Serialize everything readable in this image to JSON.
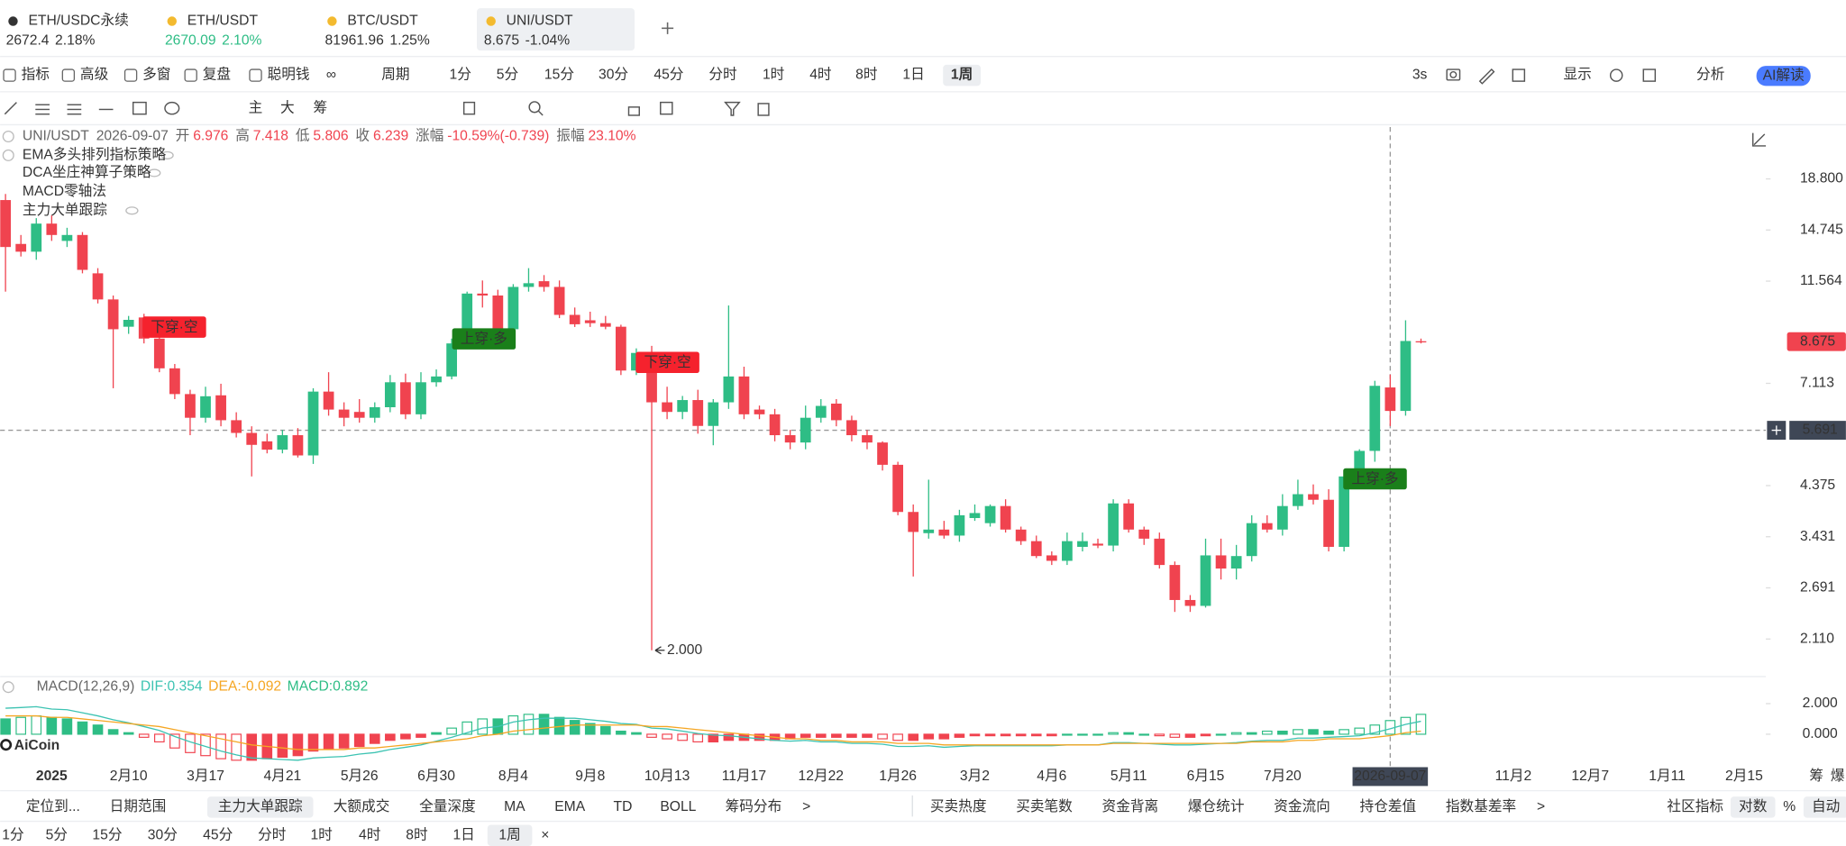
{
  "tabs": [
    {
      "symbol": "ETH/USDC永续",
      "price": "2672.4",
      "change": "2.18%",
      "color": "#333333"
    },
    {
      "symbol": "ETH/USDT",
      "price": "2670.09",
      "change": "2.10%",
      "color": "#2ebd85"
    },
    {
      "symbol": "BTC/USDT",
      "price": "81961.96",
      "change": "1.25%",
      "color": "#333333"
    },
    {
      "symbol": "UNI/USDT",
      "price": "8.675",
      "change": "-1.04%",
      "color": "#333333"
    }
  ],
  "toolbar": {
    "items": [
      "指标",
      "高级",
      "多窗",
      "复盘",
      "聪明钱"
    ],
    "period": "周期",
    "intervals": [
      "1分",
      "5分",
      "15分",
      "30分",
      "45分",
      "分时",
      "1时",
      "4时",
      "8时",
      "1日",
      "1周"
    ],
    "active": "1周",
    "right": [
      "3s",
      "显示",
      "分析"
    ],
    "ai": "AI解读"
  },
  "draw_tools": [
    "主",
    "大",
    "筹"
  ],
  "chart_data": {
    "type": "candlestick",
    "symbol": "UNI/USDT",
    "date": "2026-09-07",
    "ohlc_labels": [
      "开",
      "高",
      "低",
      "收"
    ],
    "change_label": "涨幅",
    "change": "-10.59%(-0.739)",
    "amplitude_label": "振幅",
    "amplitude": "23.10%",
    "indicators": [
      "EMA多头排列指标策略",
      "DCA坐庄神算子策略",
      "MACD零轴法",
      "主力大单跟踪"
    ],
    "up_color": "#2ebd85",
    "down_color": "#f0434f",
    "log_scale": true,
    "ylim": [
      1.795,
      24.05
    ],
    "yticks": [
      {
        "value": 18.8,
        "label": "18.800"
      },
      {
        "value": 14.745,
        "label": "14.745"
      },
      {
        "value": 11.564,
        "label": "11.564"
      },
      {
        "value": 7.113,
        "label": "7.113"
      },
      {
        "value": 4.375,
        "label": "4.375"
      },
      {
        "value": 3.431,
        "label": "3.431"
      },
      {
        "value": 2.691,
        "label": "2.691"
      },
      {
        "value": 2.11,
        "label": "2.110"
      }
    ],
    "crosshair_price": 5.691,
    "low_annotation": "2.000",
    "signals": [
      {
        "text": "下穿·空",
        "color": "#f5222d"
      },
      {
        "text": "上穿·多",
        "color": "#1a7f1a"
      },
      {
        "text": "下穿·空",
        "color": "#f5222d"
      },
      {
        "text": "上穿·多",
        "color": "#1a7f1a"
      }
    ],
    "x_labels": [
      "2025",
      "2月10",
      "3月17",
      "4月21",
      "5月26",
      "6月30",
      "8月4",
      "9月8",
      "10月13",
      "11月17",
      "12月22",
      "1月26",
      "3月2",
      "4月6",
      "5月11",
      "6月15",
      "7月20",
      null,
      null,
      "11月2",
      "12月7",
      "1月11",
      "2月15"
    ],
    "candles": [
      [
        17.0,
        17.5,
        11.0,
        13.6
      ],
      [
        13.8,
        14.4,
        13.0,
        13.3
      ],
      [
        13.3,
        15.6,
        12.8,
        15.2
      ],
      [
        15.2,
        15.8,
        14.0,
        14.4
      ],
      [
        14.0,
        14.9,
        13.6,
        14.4
      ],
      [
        14.4,
        14.6,
        12.0,
        12.2
      ],
      [
        12.0,
        12.3,
        10.4,
        10.6
      ],
      [
        10.6,
        10.8,
        6.95,
        9.2
      ],
      [
        9.31,
        9.8,
        9.0,
        9.62
      ],
      [
        9.73,
        9.9,
        8.6,
        8.8
      ],
      [
        8.8,
        9.0,
        7.5,
        7.64
      ],
      [
        7.64,
        7.8,
        6.6,
        6.76
      ],
      [
        6.76,
        6.9,
        5.56,
        6.04
      ],
      [
        6.04,
        7.0,
        5.9,
        6.69
      ],
      [
        6.72,
        7.1,
        5.8,
        5.97
      ],
      [
        5.97,
        6.2,
        5.5,
        5.62
      ],
      [
        5.62,
        5.8,
        4.57,
        5.31
      ],
      [
        5.4,
        5.6,
        5.1,
        5.19
      ],
      [
        5.19,
        5.7,
        5.1,
        5.56
      ],
      [
        5.56,
        5.75,
        5.0,
        5.05
      ],
      [
        5.05,
        6.95,
        4.85,
        6.84
      ],
      [
        6.84,
        7.5,
        6.1,
        6.28
      ],
      [
        6.28,
        6.5,
        5.8,
        6.04
      ],
      [
        6.21,
        6.6,
        5.9,
        6.04
      ],
      [
        6.04,
        6.5,
        5.9,
        6.35
      ],
      [
        6.35,
        7.4,
        6.2,
        7.15
      ],
      [
        7.15,
        7.45,
        6.0,
        6.14
      ],
      [
        6.14,
        7.5,
        6.0,
        7.15
      ],
      [
        7.15,
        7.6,
        7.0,
        7.35
      ],
      [
        7.35,
        8.8,
        7.25,
        8.6
      ],
      [
        8.6,
        11.0,
        8.4,
        10.9
      ],
      [
        10.9,
        11.6,
        10.2,
        10.8
      ],
      [
        10.8,
        11.1,
        9.0,
        9.2
      ],
      [
        9.2,
        11.4,
        9.0,
        11.25
      ],
      [
        11.25,
        12.3,
        11.0,
        11.45
      ],
      [
        11.56,
        11.9,
        11.0,
        11.25
      ],
      [
        11.25,
        11.6,
        9.7,
        9.85
      ],
      [
        9.85,
        10.2,
        9.3,
        9.42
      ],
      [
        9.6,
        10.0,
        9.3,
        9.47
      ],
      [
        9.47,
        9.8,
        9.2,
        9.31
      ],
      [
        9.31,
        9.4,
        7.4,
        7.56
      ],
      [
        7.56,
        8.4,
        7.4,
        8.22
      ],
      [
        8.22,
        8.5,
        2.0,
        6.5
      ],
      [
        6.5,
        7.0,
        6.0,
        6.21
      ],
      [
        6.21,
        6.7,
        6.0,
        6.57
      ],
      [
        6.57,
        6.9,
        5.6,
        5.81
      ],
      [
        5.81,
        6.6,
        5.3,
        6.5
      ],
      [
        6.5,
        10.3,
        6.3,
        7.35
      ],
      [
        7.35,
        7.7,
        6.0,
        6.14
      ],
      [
        6.28,
        6.4,
        6.0,
        6.14
      ],
      [
        6.14,
        6.3,
        5.4,
        5.56
      ],
      [
        5.56,
        5.7,
        5.2,
        5.37
      ],
      [
        5.37,
        6.4,
        5.2,
        6.04
      ],
      [
        6.04,
        6.6,
        5.9,
        6.39
      ],
      [
        6.46,
        6.6,
        5.8,
        5.97
      ],
      [
        5.97,
        6.1,
        5.4,
        5.56
      ],
      [
        5.56,
        5.7,
        5.2,
        5.37
      ],
      [
        5.37,
        5.4,
        4.7,
        4.83
      ],
      [
        4.83,
        4.9,
        3.8,
        3.86
      ],
      [
        3.86,
        4.0,
        2.84,
        3.51
      ],
      [
        3.49,
        4.5,
        3.4,
        3.55
      ],
      [
        3.55,
        3.7,
        3.4,
        3.45
      ],
      [
        3.45,
        3.9,
        3.35,
        3.8
      ],
      [
        3.75,
        4.0,
        3.7,
        3.84
      ],
      [
        3.66,
        4.0,
        3.6,
        3.97
      ],
      [
        3.97,
        4.1,
        3.5,
        3.55
      ],
      [
        3.55,
        3.6,
        3.3,
        3.36
      ],
      [
        3.36,
        3.45,
        3.1,
        3.13
      ],
      [
        3.14,
        3.2,
        3.0,
        3.06
      ],
      [
        3.06,
        3.5,
        3.0,
        3.36
      ],
      [
        3.27,
        3.5,
        3.2,
        3.36
      ],
      [
        3.32,
        3.4,
        3.25,
        3.29
      ],
      [
        3.29,
        4.1,
        3.2,
        4.02
      ],
      [
        4.02,
        4.1,
        3.5,
        3.55
      ],
      [
        3.55,
        3.6,
        3.3,
        3.4
      ],
      [
        3.4,
        3.5,
        2.95,
        3.0
      ],
      [
        3.0,
        3.05,
        2.4,
        2.54
      ],
      [
        2.54,
        2.6,
        2.4,
        2.47
      ],
      [
        2.47,
        3.4,
        2.45,
        3.14
      ],
      [
        3.14,
        3.4,
        2.8,
        2.95
      ],
      [
        2.95,
        3.3,
        2.8,
        3.13
      ],
      [
        3.13,
        3.8,
        3.05,
        3.66
      ],
      [
        3.66,
        3.8,
        3.5,
        3.55
      ],
      [
        3.55,
        4.2,
        3.45,
        3.97
      ],
      [
        3.97,
        4.5,
        3.9,
        4.2
      ],
      [
        4.2,
        4.4,
        4.0,
        4.09
      ],
      [
        4.09,
        4.3,
        3.2,
        3.27
      ],
      [
        3.27,
        4.7,
        3.2,
        4.57
      ],
      [
        4.57,
        5.2,
        4.4,
        5.16
      ],
      [
        5.16,
        7.2,
        4.9,
        7.03
      ],
      [
        6.976,
        7.418,
        5.806,
        6.239
      ],
      [
        6.24,
        9.6,
        6.1,
        8.7
      ],
      [
        8.69,
        8.8,
        8.6,
        8.675
      ]
    ],
    "macd": {
      "title": "MACD(12,26,9)",
      "dif_label": "DIF:",
      "dea_label": "DEA:",
      "hist_label": "MACD:",
      "dif_color": "#3cc3b2",
      "dea_color": "#f5a623",
      "ylim": [
        -2,
        3.77
      ],
      "yticks": [
        {
          "value": 2,
          "label": "2.000"
        },
        {
          "value": 0,
          "label": "0.000"
        }
      ],
      "hist": [
        1.0,
        1.1,
        1.2,
        1.1,
        1.0,
        0.8,
        0.6,
        0.3,
        0.1,
        -0.2,
        -0.5,
        -0.9,
        -1.2,
        -1.4,
        -1.6,
        -1.7,
        -1.7,
        -1.6,
        -1.5,
        -1.4,
        -1.1,
        -1.0,
        -0.9,
        -0.8,
        -0.6,
        -0.4,
        -0.3,
        -0.2,
        0.1,
        0.4,
        0.8,
        1.0,
        1.0,
        1.2,
        1.3,
        1.3,
        1.1,
        0.9,
        0.7,
        0.5,
        0.2,
        0.1,
        -0.2,
        -0.3,
        -0.4,
        -0.5,
        -0.5,
        -0.4,
        -0.4,
        -0.4,
        -0.4,
        -0.3,
        -0.2,
        -0.2,
        -0.2,
        -0.2,
        -0.2,
        -0.3,
        -0.4,
        -0.4,
        -0.3,
        -0.3,
        -0.2,
        -0.1,
        -0.1,
        -0.1,
        -0.1,
        -0.1,
        -0.1,
        0.0,
        0.0,
        0.0,
        0.1,
        0.1,
        0.0,
        -0.1,
        -0.2,
        -0.2,
        -0.1,
        0.0,
        0.1,
        0.1,
        0.2,
        0.2,
        0.3,
        0.3,
        0.2,
        0.3,
        0.4,
        0.6,
        0.892,
        1.1,
        1.3
      ],
      "dea": [
        1.2,
        1.2,
        1.2,
        1.1,
        1.1,
        1.0,
        0.9,
        0.8,
        0.7,
        0.6,
        0.5,
        0.3,
        0.1,
        -0.1,
        -0.3,
        -0.5,
        -0.7,
        -0.8,
        -0.9,
        -1.0,
        -1.0,
        -1.0,
        -1.0,
        -0.9,
        -0.9,
        -0.8,
        -0.7,
        -0.6,
        -0.5,
        -0.4,
        -0.3,
        -0.1,
        0.0,
        0.2,
        0.3,
        0.4,
        0.5,
        0.6,
        0.6,
        0.6,
        0.6,
        0.6,
        0.5,
        0.5,
        0.4,
        0.3,
        0.2,
        0.1,
        0.0,
        -0.1,
        -0.2,
        -0.3,
        -0.3,
        -0.4,
        -0.4,
        -0.5,
        -0.5,
        -0.5,
        -0.6,
        -0.6,
        -0.6,
        -0.7,
        -0.7,
        -0.7,
        -0.7,
        -0.7,
        -0.7,
        -0.7,
        -0.7,
        -0.7,
        -0.7,
        -0.7,
        -0.6,
        -0.6,
        -0.6,
        -0.6,
        -0.6,
        -0.6,
        -0.6,
        -0.6,
        -0.6,
        -0.5,
        -0.5,
        -0.5,
        -0.4,
        -0.4,
        -0.3,
        -0.3,
        -0.3,
        -0.2,
        -0.092,
        0.1,
        0.2
      ],
      "dif": [
        1.7,
        1.75,
        1.8,
        1.65,
        1.6,
        1.4,
        1.2,
        0.95,
        0.75,
        0.5,
        0.25,
        -0.15,
        -0.5,
        -0.8,
        -1.1,
        -1.35,
        -1.55,
        -1.6,
        -1.65,
        -1.7,
        -1.55,
        -1.5,
        -1.45,
        -1.3,
        -1.2,
        -1.0,
        -0.85,
        -0.7,
        -0.45,
        -0.2,
        0.1,
        0.4,
        0.5,
        0.8,
        0.95,
        1.05,
        1.05,
        1.05,
        0.95,
        0.85,
        0.7,
        0.65,
        0.4,
        0.35,
        0.2,
        0.05,
        -0.05,
        -0.1,
        -0.2,
        -0.3,
        -0.4,
        -0.45,
        -0.4,
        -0.5,
        -0.5,
        -0.6,
        -0.6,
        -0.65,
        -0.8,
        -0.8,
        -0.75,
        -0.85,
        -0.8,
        -0.75,
        -0.75,
        -0.75,
        -0.75,
        -0.75,
        -0.75,
        -0.7,
        -0.7,
        -0.7,
        -0.55,
        -0.55,
        -0.6,
        -0.65,
        -0.7,
        -0.7,
        -0.65,
        -0.6,
        -0.55,
        -0.45,
        -0.4,
        -0.4,
        -0.25,
        -0.25,
        -0.2,
        -0.15,
        -0.1,
        0.1,
        0.354,
        0.65,
        0.85
      ]
    }
  },
  "logo": "AiCoin",
  "side_tabs": [
    "筹",
    "爆"
  ],
  "bottom_bar": {
    "left": [
      "定位到...",
      "日期范围",
      "主力大单跟踪",
      "大额成交",
      "全量深度",
      "MA",
      "EMA",
      "TD",
      "BOLL",
      "筹码分布",
      ">"
    ],
    "right": [
      "买卖热度",
      "买卖笔数",
      "资金背离",
      "爆仓统计",
      "资金流向",
      "持仓差值",
      "指数基差率",
      ">"
    ],
    "settings": [
      "社区指标",
      "对数",
      "%",
      "自动"
    ],
    "active": [
      "主力大单跟踪",
      "对数",
      "自动"
    ]
  },
  "bottom_intervals": {
    "items": [
      "1分",
      "5分",
      "15分",
      "30分",
      "45分",
      "分时",
      "1时",
      "4时",
      "8时",
      "1日",
      "1周"
    ],
    "active": "1周",
    "close": "×"
  }
}
